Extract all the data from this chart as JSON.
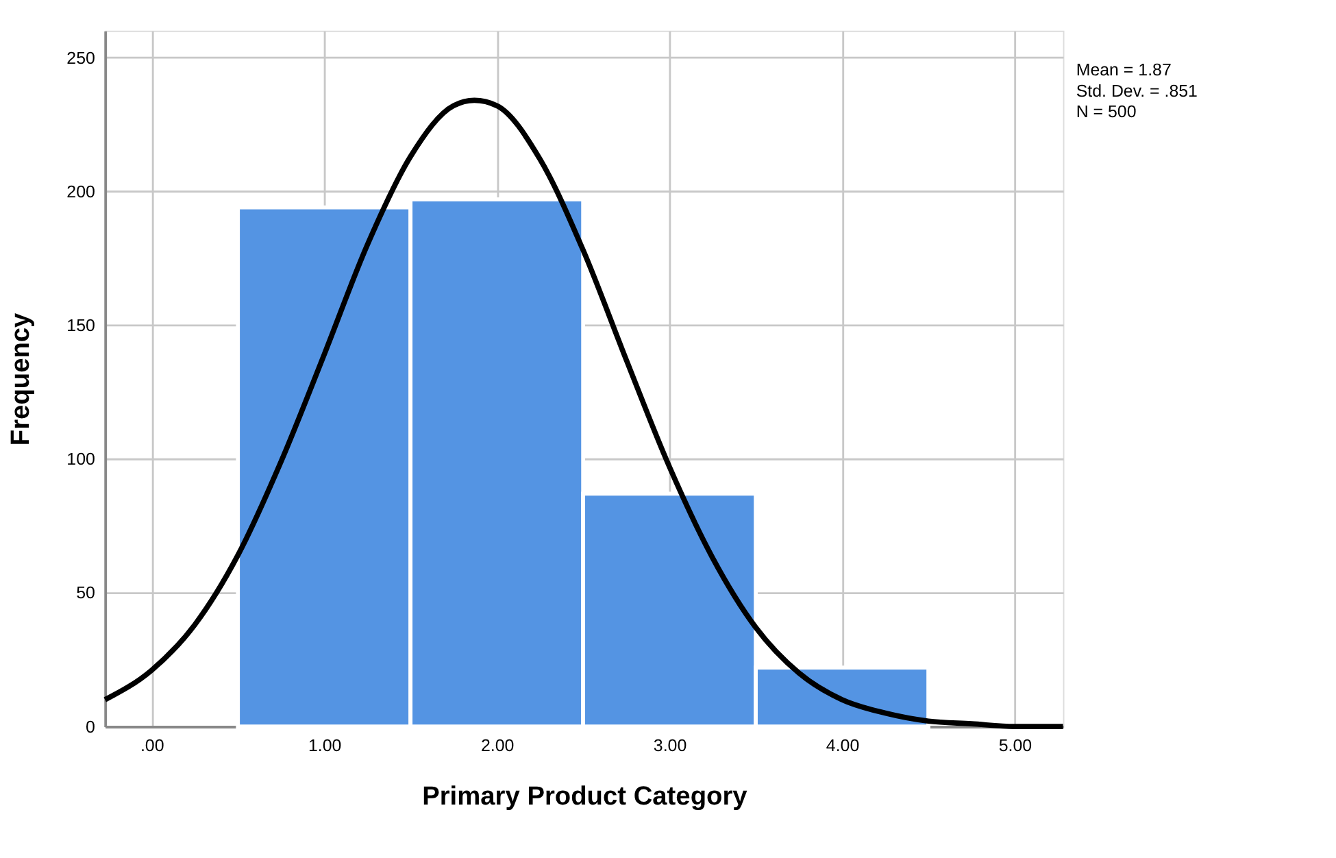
{
  "chart_data": {
    "type": "histogram",
    "xlabel": "Primary Product Category",
    "ylabel": "Frequency",
    "bins": [
      0.5,
      1.5,
      2.5,
      3.5,
      4.5
    ],
    "values": [
      194,
      197,
      87,
      22
    ],
    "color": "#5494e3",
    "series": [
      {
        "type": "line",
        "color": "#000000",
        "x": [
          -0.27,
          0,
          0.25,
          0.5,
          0.75,
          1,
          1.25,
          1.5,
          1.75,
          1.87,
          2,
          2.25,
          2.5,
          2.75,
          3,
          3.25,
          3.5,
          3.75,
          4,
          4.25,
          4.5,
          4.75,
          5,
          5.28
        ],
        "values": [
          10,
          21,
          38,
          64,
          99,
          139,
          180,
          213,
          232,
          234,
          232,
          212,
          178,
          137,
          97,
          63,
          37,
          20,
          10,
          5,
          2,
          1,
          0,
          0
        ]
      }
    ],
    "xlim": [
      -0.27,
      5.28
    ],
    "ylim": [
      0,
      260
    ],
    "xticks": [
      {
        "value": 0,
        "label": ".00"
      },
      {
        "value": 1,
        "label": "1.00"
      },
      {
        "value": 2,
        "label": "2.00"
      },
      {
        "value": 3,
        "label": "3.00"
      },
      {
        "value": 4,
        "label": "4.00"
      },
      {
        "value": 5,
        "label": "5.00"
      }
    ],
    "yticks": [
      0,
      50,
      100,
      150,
      200,
      250
    ],
    "grid": true,
    "annotations": [
      "Mean = 1.87",
      "Std. Dev. = .851",
      "N = 500"
    ]
  }
}
